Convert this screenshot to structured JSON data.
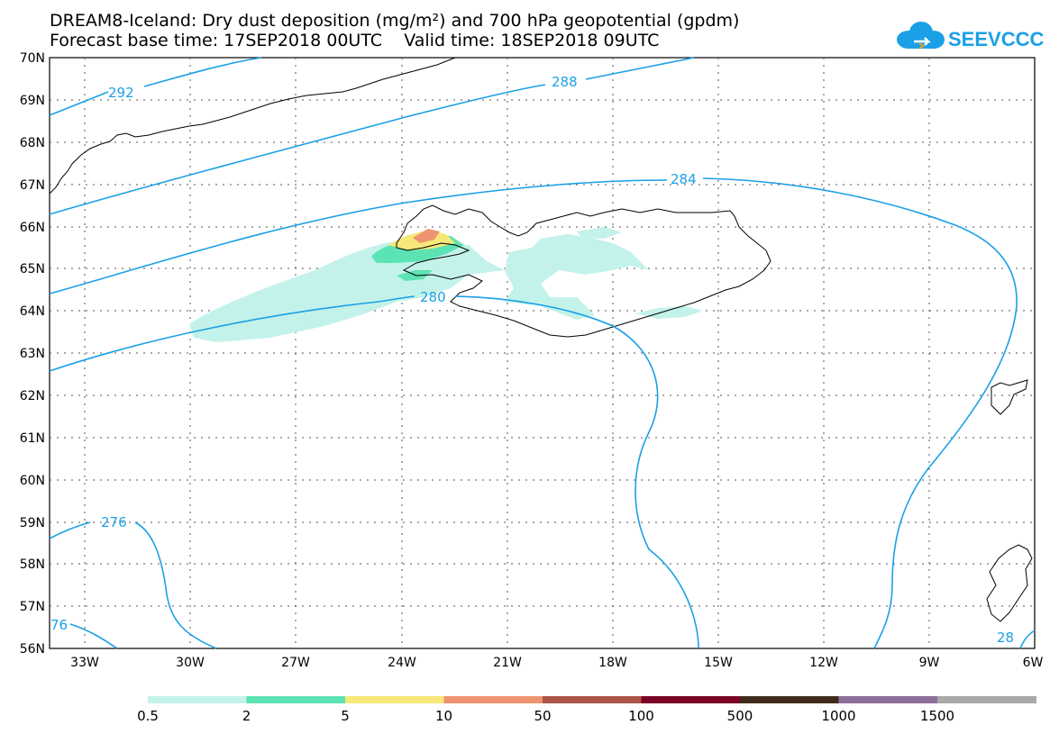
{
  "header": {
    "title_line1": "DREAM8-Iceland: Dry dust deposition (mg/m²) and 700 hPa geopotential (gpdm)",
    "title_line2": "Forecast base time: 17SEP2018 00UTC    Valid time: 18SEP2018 09UTC",
    "logo_text": "SEEVCCC"
  },
  "map": {
    "lat_labels": [
      "70N",
      "69N",
      "68N",
      "67N",
      "66N",
      "65N",
      "64N",
      "63N",
      "62N",
      "61N",
      "60N",
      "59N",
      "58N",
      "57N",
      "56N"
    ],
    "lon_labels": [
      "33W",
      "30W",
      "27W",
      "24W",
      "21W",
      "18W",
      "15W",
      "12W",
      "9W",
      "6W"
    ],
    "contour_labels": [
      "292",
      "288",
      "284",
      "280",
      "276",
      "76",
      "28"
    ],
    "contour_color": "#1aa0e6"
  },
  "colorbar": {
    "colors": [
      "#c3f2ea",
      "#5ce3b4",
      "#f8e87a",
      "#ee9470",
      "#ad5549",
      "#7a0325",
      "#3f2a1b",
      "#8e6f9c",
      "#a9a9a9"
    ],
    "labels": [
      "0.5",
      "2",
      "5",
      "10",
      "50",
      "100",
      "500",
      "1000",
      "1500"
    ]
  }
}
